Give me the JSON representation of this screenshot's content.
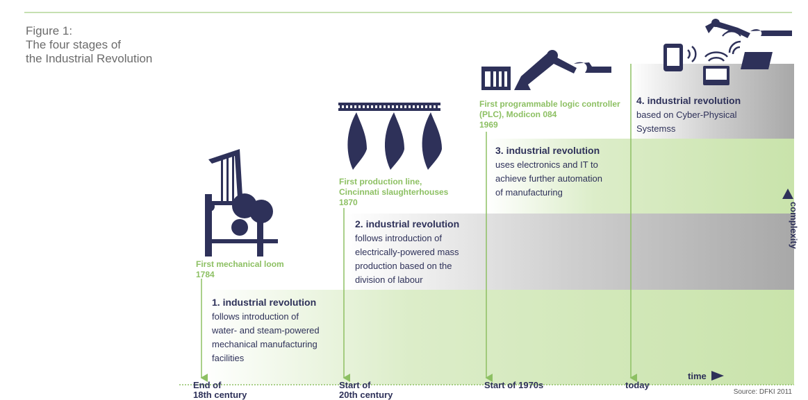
{
  "figure": {
    "title": [
      "Figure 1:",
      "The four stages of",
      "the Industrial Revolution"
    ],
    "stages": [
      {
        "invention": [
          "First mechanical loom"
        ],
        "year": "1784",
        "heading": "1. industrial revolution",
        "description": [
          "follows introduction of",
          "water- and steam-powered",
          "mechanical manufacturing",
          "facilities"
        ],
        "time": [
          "End of",
          "18th century"
        ]
      },
      {
        "invention": [
          "First production line,",
          "Cincinnati slaughterhouses"
        ],
        "year": "1870",
        "heading": "2. industrial revolution",
        "description": [
          "follows introduction of",
          "electrically-powered mass",
          "production based on the",
          "division of labour"
        ],
        "time": [
          "Start of",
          "20th century"
        ]
      },
      {
        "invention": [
          "First programmable logic controller",
          "(PLC), Modicon 084"
        ],
        "year": "1969",
        "heading": "3. industrial revolution",
        "description": [
          "uses electronics and IT to",
          "achieve further automation",
          "of manufacturing"
        ],
        "time": [
          "Start of 1970s"
        ]
      },
      {
        "invention": [],
        "year": null,
        "heading": "4. industrial revolution",
        "description": [
          "based on Cyber-Physical",
          "Systemss"
        ],
        "time": [
          "today"
        ]
      }
    ],
    "x_axis_label": "time",
    "y_axis_label": "complexity",
    "source": "Source: DFKI 2011"
  }
}
